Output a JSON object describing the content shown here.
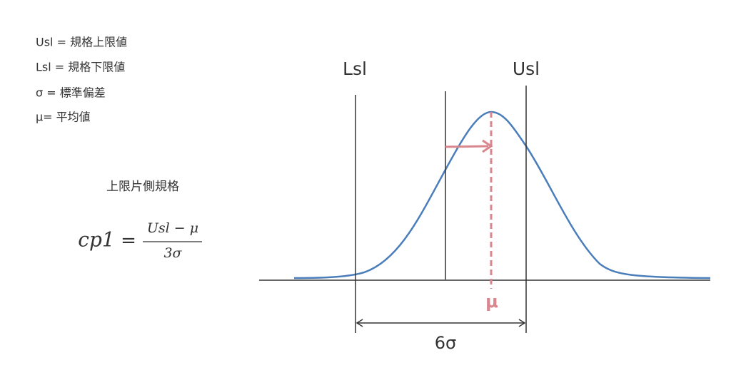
{
  "legend": [
    "Usl = 規格上限値",
    "Lsl = 規格下限値",
    "σ = 標準偏差",
    "μ= 平均値"
  ],
  "formula": {
    "title": "上限片側規格",
    "lhs": "cp1",
    "equals": "=",
    "numerator": "Usl − μ",
    "denominator": "3σ"
  },
  "diagram": {
    "lsl": "Lsl",
    "usl": "Usl",
    "mean": "μ",
    "width": "6σ"
  }
}
